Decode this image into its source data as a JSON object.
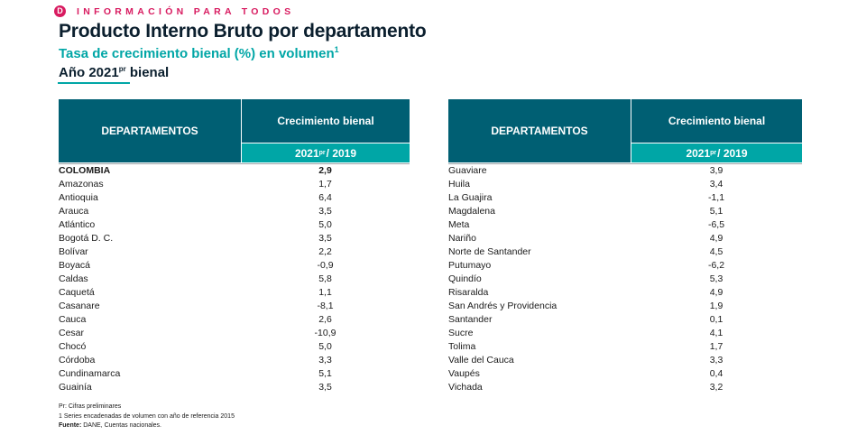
{
  "header": {
    "brand_logo": "D",
    "brand_text": "INFORMACIÓN PARA TODOS",
    "title": "Producto Interno Bruto por departamento",
    "subtitle": "Tasa de crecimiento bienal (%) en volumen",
    "subtitle_sup": "1",
    "year_main": "Año 2021",
    "year_sup": "pr",
    "year_suffix": " bienal"
  },
  "table": {
    "col_dept": "DEPARTAMENTOS",
    "col_growth": "Crecimiento bienal",
    "col_period_a": "2021",
    "col_period_sup": "pr",
    "col_period_b": "/ 2019",
    "left_rows": [
      {
        "name": "COLOMBIA",
        "value": "2,9"
      },
      {
        "name": "Amazonas",
        "value": "1,7"
      },
      {
        "name": "Antioquia",
        "value": "6,4"
      },
      {
        "name": "Arauca",
        "value": "3,5"
      },
      {
        "name": "Atlántico",
        "value": "5,0"
      },
      {
        "name": "Bogotá D. C.",
        "value": "3,5"
      },
      {
        "name": "Bolívar",
        "value": "2,2"
      },
      {
        "name": "Boyacá",
        "value": "-0,9"
      },
      {
        "name": "Caldas",
        "value": "5,8"
      },
      {
        "name": "Caquetá",
        "value": "1,1"
      },
      {
        "name": "Casanare",
        "value": "-8,1"
      },
      {
        "name": "Cauca",
        "value": "2,6"
      },
      {
        "name": "Cesar",
        "value": "-10,9"
      },
      {
        "name": "Chocó",
        "value": "5,0"
      },
      {
        "name": "Córdoba",
        "value": "3,3"
      },
      {
        "name": "Cundinamarca",
        "value": "5,1"
      },
      {
        "name": "Guainía",
        "value": "3,5"
      }
    ],
    "right_rows": [
      {
        "name": "Guaviare",
        "value": "3,9"
      },
      {
        "name": "Huila",
        "value": "3,4"
      },
      {
        "name": "La Guajira",
        "value": "-1,1"
      },
      {
        "name": "Magdalena",
        "value": "5,1"
      },
      {
        "name": "Meta",
        "value": "-6,5"
      },
      {
        "name": "Nariño",
        "value": "4,9"
      },
      {
        "name": "Norte de Santander",
        "value": "4,5"
      },
      {
        "name": "Putumayo",
        "value": "-6,2"
      },
      {
        "name": "Quindío",
        "value": "5,3"
      },
      {
        "name": "Risaralda",
        "value": "4,9"
      },
      {
        "name": "San Andrés y Providencia",
        "value": "1,9"
      },
      {
        "name": "Santander",
        "value": "0,1"
      },
      {
        "name": "Sucre",
        "value": "4,1"
      },
      {
        "name": "Tolima",
        "value": "1,7"
      },
      {
        "name": "Valle del Cauca",
        "value": "3,3"
      },
      {
        "name": "Vaupés",
        "value": "0,4"
      },
      {
        "name": "Vichada",
        "value": "3,2"
      }
    ]
  },
  "notes": {
    "line1": "Pr: Cifras preliminares",
    "line2": "1 Series encadenadas de volumen con año de referencia 2015",
    "source_label": "Fuente:",
    "source_text": " DANE, Cuentas nacionales."
  },
  "colors": {
    "brand": "#d81b60",
    "header_dark": "#005f73",
    "header_teal": "#00a6a6"
  }
}
